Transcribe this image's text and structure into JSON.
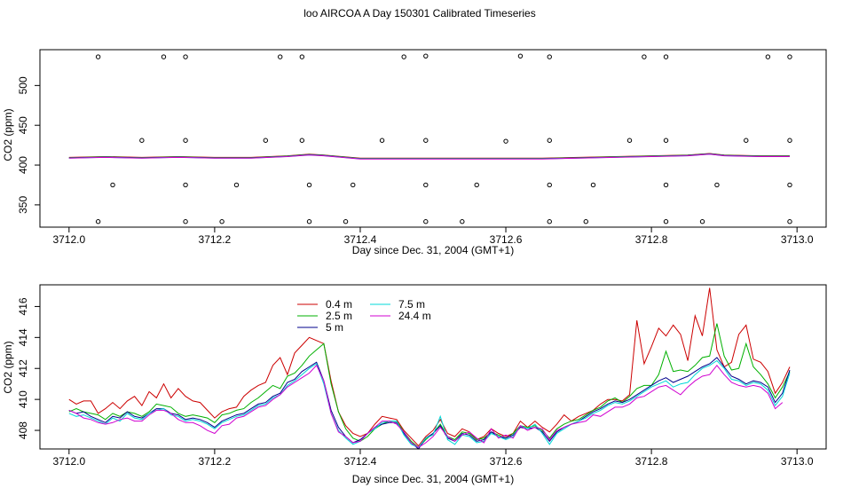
{
  "title": "loo AIRCOA A  Day 150301  Calibrated Timeseries",
  "colors": {
    "0.4 m": "#cc0000",
    "2.5 m": "#00b000",
    "5 m": "#00008b",
    "7.5 m": "#00d8d8",
    "24.4 m": "#d000d0",
    "markers": "#000000"
  },
  "chart_data": [
    {
      "type": "scatter",
      "title": "",
      "xlabel": "Day since Dec. 31, 2004 (GMT+1)",
      "ylabel": "CO2 (ppm)",
      "xlim": [
        3711.96,
        3713.04
      ],
      "ylim": [
        322,
        545
      ],
      "xticks": [
        {
          "v": 3712.0,
          "label": "3712.0"
        },
        {
          "v": 3712.2,
          "label": "3712.2"
        },
        {
          "v": 3712.4,
          "label": "3712.4"
        },
        {
          "v": 3712.6,
          "label": "3712.6"
        },
        {
          "v": 3712.8,
          "label": "3712.8"
        },
        {
          "v": 3713.0,
          "label": "3713.0"
        }
      ],
      "yticks": [
        {
          "v": 350,
          "label": "350"
        },
        {
          "v": 400,
          "label": "400"
        },
        {
          "v": 450,
          "label": "450"
        },
        {
          "v": 500,
          "label": "500"
        }
      ],
      "grid": false,
      "legend": "none",
      "series": [
        {
          "style": "lines",
          "x": [
            3712.0,
            3712.05,
            3712.1,
            3712.15,
            3712.2,
            3712.25,
            3712.3,
            3712.33,
            3712.35,
            3712.4,
            3712.45,
            3712.5,
            3712.55,
            3712.6,
            3712.65,
            3712.7,
            3712.75,
            3712.8,
            3712.85,
            3712.88,
            3712.9,
            3712.95,
            3712.99
          ],
          "values": [
            409,
            410,
            409,
            410,
            409,
            409,
            411,
            413,
            412,
            408,
            408,
            408,
            408,
            408,
            408,
            409,
            410,
            411,
            412,
            414,
            412,
            411,
            411
          ]
        },
        {
          "style": "points",
          "x": [
            3712.04,
            3712.13,
            3712.16,
            3712.29,
            3712.32,
            3712.46,
            3712.49,
            3712.62,
            3712.66,
            3712.79,
            3712.82,
            3712.96,
            3712.99
          ],
          "values": [
            536,
            536,
            536,
            536,
            536,
            536,
            537,
            537,
            536,
            536,
            536,
            536,
            536
          ]
        },
        {
          "style": "points",
          "x": [
            3712.1,
            3712.16,
            3712.27,
            3712.32,
            3712.43,
            3712.49,
            3712.6,
            3712.66,
            3712.77,
            3712.82,
            3712.93,
            3712.99
          ],
          "values": [
            431,
            431,
            431,
            431,
            431,
            431,
            430,
            431,
            431,
            431,
            431,
            431
          ]
        },
        {
          "style": "points",
          "x": [
            3712.06,
            3712.16,
            3712.23,
            3712.33,
            3712.39,
            3712.49,
            3712.56,
            3712.66,
            3712.72,
            3712.82,
            3712.89,
            3712.99
          ],
          "values": [
            375,
            375,
            375,
            375,
            375,
            375,
            375,
            375,
            375,
            375,
            375,
            375
          ]
        },
        {
          "style": "points",
          "x": [
            3712.04,
            3712.16,
            3712.21,
            3712.33,
            3712.38,
            3712.49,
            3712.54,
            3712.66,
            3712.71,
            3712.82,
            3712.87,
            3712.99
          ],
          "values": [
            329,
            329,
            329,
            329,
            329,
            329,
            329,
            329,
            329,
            329,
            329,
            329
          ]
        }
      ]
    },
    {
      "type": "line",
      "title": "",
      "xlabel": "Day since Dec. 31, 2004 (GMT+1)",
      "ylabel": "CO2 (ppm)",
      "xlim": [
        3711.96,
        3713.04
      ],
      "ylim": [
        406.8,
        417.4
      ],
      "xticks": [
        {
          "v": 3712.0,
          "label": "3712.0"
        },
        {
          "v": 3712.2,
          "label": "3712.2"
        },
        {
          "v": 3712.4,
          "label": "3712.4"
        },
        {
          "v": 3712.6,
          "label": "3712.6"
        },
        {
          "v": 3712.8,
          "label": "3712.8"
        },
        {
          "v": 3713.0,
          "label": "3713.0"
        }
      ],
      "yticks": [
        {
          "v": 408,
          "label": "408"
        },
        {
          "v": 410,
          "label": "410"
        },
        {
          "v": 412,
          "label": "412"
        },
        {
          "v": 414,
          "label": "414"
        },
        {
          "v": 416,
          "label": "416"
        }
      ],
      "grid": false,
      "legend": "top-left",
      "x": [
        3712.0,
        3712.01,
        3712.02,
        3712.03,
        3712.04,
        3712.05,
        3712.06,
        3712.07,
        3712.08,
        3712.09,
        3712.1,
        3712.11,
        3712.12,
        3712.13,
        3712.14,
        3712.15,
        3712.16,
        3712.17,
        3712.18,
        3712.19,
        3712.2,
        3712.21,
        3712.22,
        3712.23,
        3712.24,
        3712.25,
        3712.26,
        3712.27,
        3712.28,
        3712.29,
        3712.3,
        3712.31,
        3712.32,
        3712.33,
        3712.34,
        3712.35,
        3712.36,
        3712.37,
        3712.38,
        3712.39,
        3712.4,
        3712.41,
        3712.42,
        3712.43,
        3712.44,
        3712.45,
        3712.46,
        3712.47,
        3712.48,
        3712.49,
        3712.5,
        3712.51,
        3712.52,
        3712.53,
        3712.54,
        3712.55,
        3712.56,
        3712.57,
        3712.58,
        3712.59,
        3712.6,
        3712.61,
        3712.62,
        3712.63,
        3712.64,
        3712.65,
        3712.66,
        3712.67,
        3712.68,
        3712.69,
        3712.7,
        3712.71,
        3712.72,
        3712.73,
        3712.74,
        3712.75,
        3712.76,
        3712.77,
        3712.78,
        3712.79,
        3712.8,
        3712.81,
        3712.82,
        3712.83,
        3712.84,
        3712.85,
        3712.86,
        3712.87,
        3712.88,
        3712.89,
        3712.9,
        3712.91,
        3712.92,
        3712.93,
        3712.94,
        3712.95,
        3712.96,
        3712.97,
        3712.98,
        3712.99
      ],
      "series": [
        {
          "name": "0.4 m",
          "values": [
            410,
            409.7,
            409.9,
            409.9,
            409.1,
            409.4,
            409.8,
            409.4,
            409.9,
            410.2,
            409.6,
            410.5,
            410.1,
            411,
            410.1,
            410.7,
            410.2,
            409.9,
            409.8,
            409.3,
            408.8,
            409.2,
            409.4,
            409.5,
            410.2,
            410.6,
            410.9,
            411.1,
            412.2,
            412.7,
            411.6,
            413,
            413.5,
            414,
            413.8,
            413.6,
            411.2,
            409.2,
            408.3,
            407.8,
            407.6,
            407.8,
            408.4,
            408.9,
            408.8,
            408.7,
            408,
            407.5,
            407,
            407.6,
            408,
            408.7,
            407.8,
            407.6,
            408.1,
            407.9,
            407.4,
            407.6,
            408.1,
            407.8,
            407.6,
            407.8,
            408.6,
            408.2,
            408.6,
            408.2,
            407.9,
            408.4,
            409,
            408.6,
            408.9,
            409.1,
            409.3,
            409.7,
            410,
            410,
            409.9,
            410.3,
            415.1,
            412.3,
            413.4,
            414.6,
            414.1,
            414.8,
            414.2,
            412.5,
            415.4,
            414.1,
            417.2,
            413.2,
            412.1,
            412.4,
            414.2,
            414.8,
            412.6,
            412.4,
            411.8,
            410.4,
            411.1,
            412.1
          ]
        },
        {
          "name": "2.5 m",
          "values": [
            409.2,
            409.4,
            409.2,
            409.1,
            409,
            408.7,
            409.1,
            408.9,
            409.2,
            409.1,
            408.9,
            409.2,
            409.7,
            409.6,
            409.5,
            409.1,
            408.9,
            409,
            408.9,
            408.8,
            408.5,
            409,
            409.1,
            409.3,
            409.4,
            409.8,
            410.1,
            410.5,
            410.9,
            410.7,
            411.5,
            411.7,
            412.2,
            412.8,
            413.2,
            413.6,
            411,
            409.2,
            408.1,
            407.5,
            407.3,
            407.6,
            408.1,
            408.4,
            408.6,
            408.6,
            407.9,
            407.3,
            406.9,
            407.4,
            407.8,
            408.4,
            407.6,
            407.4,
            407.9,
            407.8,
            407.4,
            407.5,
            407.9,
            407.7,
            407.5,
            407.8,
            408.3,
            408.2,
            408.3,
            408,
            407.5,
            408.1,
            408.4,
            408.6,
            408.7,
            409,
            409.3,
            409.5,
            409.9,
            410.1,
            409.8,
            410.2,
            410.7,
            410.9,
            410.9,
            411.6,
            413.1,
            411.8,
            411.9,
            411.8,
            412.2,
            412.7,
            412.8,
            414.9,
            412.8,
            411.9,
            412,
            413.6,
            412.1,
            411.6,
            411,
            410.1,
            410.8,
            411.8
          ]
        },
        {
          "name": "5 m",
          "values": [
            409.3,
            409.1,
            409.2,
            408.9,
            408.7,
            408.5,
            408.9,
            408.8,
            409.2,
            408.9,
            408.8,
            409.1,
            409.4,
            409.4,
            409.1,
            409,
            408.7,
            408.8,
            408.7,
            408.5,
            408.2,
            408.6,
            408.8,
            409,
            409.1,
            409.4,
            409.7,
            409.8,
            410.2,
            410.4,
            411.1,
            411.3,
            411.8,
            412.1,
            412.4,
            411.2,
            409.3,
            408.2,
            407.6,
            407.2,
            407.4,
            407.8,
            408.2,
            408.4,
            408.5,
            408.5,
            407.8,
            407.2,
            406.8,
            407.5,
            407.8,
            408.3,
            407.5,
            407.3,
            407.8,
            407.7,
            407.3,
            407.4,
            407.9,
            407.6,
            407.5,
            407.7,
            408.2,
            408.1,
            408.2,
            407.9,
            407.3,
            407.9,
            408.2,
            408.4,
            408.6,
            408.9,
            409.2,
            409.4,
            409.7,
            409.9,
            409.8,
            410,
            410.3,
            410.6,
            410.9,
            411.2,
            411.4,
            411.1,
            411.3,
            411.5,
            411.8,
            412.1,
            412.3,
            412.7,
            412.1,
            411.5,
            411.3,
            411,
            411.2,
            411.1,
            410.8,
            409.8,
            410.4,
            411.9
          ]
        },
        {
          "name": "7.5 m",
          "values": [
            409.1,
            408.9,
            409,
            408.8,
            408.6,
            408.4,
            408.8,
            408.6,
            409.1,
            408.8,
            408.7,
            409.1,
            409.3,
            409.4,
            409,
            408.9,
            408.6,
            408.7,
            408.6,
            408.4,
            408.1,
            408.5,
            408.7,
            408.9,
            409,
            409.3,
            409.6,
            409.7,
            410.1,
            410.3,
            410.9,
            411.2,
            411.6,
            412,
            412.3,
            411,
            409.1,
            408,
            407.5,
            407.1,
            407.3,
            407.8,
            408.1,
            408.5,
            408.6,
            408.6,
            407.7,
            407.1,
            406.9,
            407.5,
            407.7,
            408.9,
            407.4,
            407.1,
            407.7,
            407.6,
            407.2,
            407.3,
            407.8,
            407.6,
            407.4,
            407.6,
            408.3,
            408.1,
            408.4,
            407.8,
            407.1,
            407.8,
            408.1,
            408.4,
            408.6,
            408.8,
            409.1,
            409.3,
            409.6,
            409.8,
            409.7,
            409.9,
            410.2,
            410.5,
            410.8,
            411,
            411.2,
            410.8,
            411,
            411.1,
            411.6,
            412,
            412.2,
            412.5,
            412,
            411.3,
            411.2,
            410.9,
            411.1,
            411,
            410.6,
            409.6,
            410.2,
            411.7
          ]
        },
        {
          "name": "24.4 m",
          "values": [
            409.3,
            409.1,
            408.8,
            408.7,
            408.5,
            408.4,
            408.5,
            408.7,
            408.8,
            408.6,
            408.6,
            409,
            409.3,
            409.3,
            409.1,
            408.7,
            408.5,
            408.5,
            408.3,
            408,
            407.8,
            408.3,
            408.4,
            408.8,
            408.9,
            409.2,
            409.5,
            409.6,
            410,
            410.3,
            410.8,
            411.1,
            411.4,
            411.7,
            412.2,
            411.2,
            409.1,
            407.9,
            407.6,
            407.2,
            407.3,
            407.8,
            408.2,
            408.6,
            408.6,
            408.4,
            407.9,
            407.2,
            406.9,
            407.2,
            407.6,
            408.2,
            407.6,
            407.3,
            407.7,
            407.9,
            407.5,
            407.2,
            408.1,
            407.5,
            407.7,
            407.5,
            408.3,
            408,
            408.2,
            408.1,
            407.4,
            408,
            408.2,
            408.4,
            408.5,
            408.6,
            409,
            408.9,
            409.2,
            409.5,
            409.5,
            409.7,
            410.1,
            410.2,
            410.5,
            410.8,
            410.9,
            410.6,
            410.3,
            410.8,
            411.2,
            411.5,
            411.6,
            412.2,
            411.6,
            411.1,
            410.9,
            410.8,
            410.9,
            410.8,
            410.4,
            409.4,
            409.8,
            null
          ]
        }
      ]
    }
  ]
}
